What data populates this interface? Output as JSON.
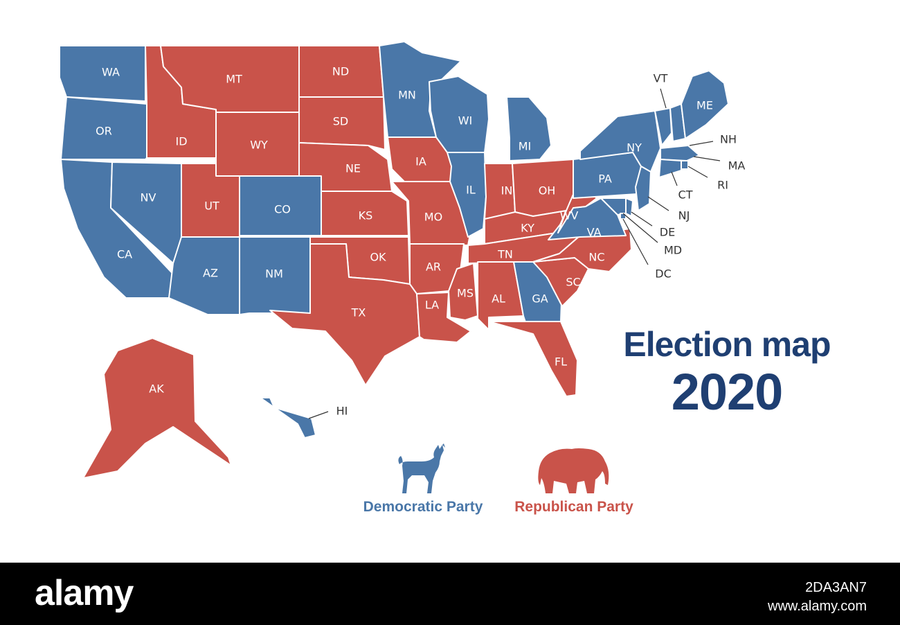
{
  "title": {
    "line1": "Election map",
    "line2": "2020"
  },
  "colors": {
    "democratic": "#4a77a8",
    "republican": "#c9534a",
    "title": "#1f3f72",
    "footer_bg": "#000000",
    "footer_text": "#ffffff"
  },
  "legend": [
    {
      "party": "democratic",
      "label": "Democratic Party",
      "icon": "donkey-icon"
    },
    {
      "party": "republican",
      "label": "Republican Party",
      "icon": "elephant-icon"
    }
  ],
  "states": {
    "WA": "democratic",
    "OR": "democratic",
    "CA": "democratic",
    "NV": "democratic",
    "ID": "republican",
    "MT": "republican",
    "WY": "republican",
    "UT": "republican",
    "CO": "democratic",
    "AZ": "democratic",
    "NM": "democratic",
    "ND": "republican",
    "SD": "republican",
    "NE": "republican",
    "KS": "republican",
    "OK": "republican",
    "TX": "republican",
    "MN": "democratic",
    "IA": "republican",
    "MO": "republican",
    "AR": "republican",
    "LA": "republican",
    "WI": "democratic",
    "IL": "democratic",
    "MI": "democratic",
    "IN": "republican",
    "OH": "republican",
    "KY": "republican",
    "TN": "republican",
    "MS": "republican",
    "AL": "republican",
    "GA": "democratic",
    "FL": "republican",
    "SC": "republican",
    "NC": "republican",
    "VA": "democratic",
    "WV": "republican",
    "PA": "democratic",
    "NY": "democratic",
    "VT": "democratic",
    "NH": "democratic",
    "ME": "democratic",
    "MA": "democratic",
    "RI": "democratic",
    "CT": "democratic",
    "NJ": "democratic",
    "DE": "democratic",
    "MD": "democratic",
    "DC": "democratic",
    "AK": "republican",
    "HI": "democratic"
  },
  "callout_states": [
    "VT",
    "NH",
    "MA",
    "RI",
    "CT",
    "NJ",
    "DE",
    "MD",
    "DC",
    "HI"
  ],
  "footer": {
    "brand": "alamy",
    "image_id": "2DA3AN7",
    "url": "www.alamy.com"
  }
}
